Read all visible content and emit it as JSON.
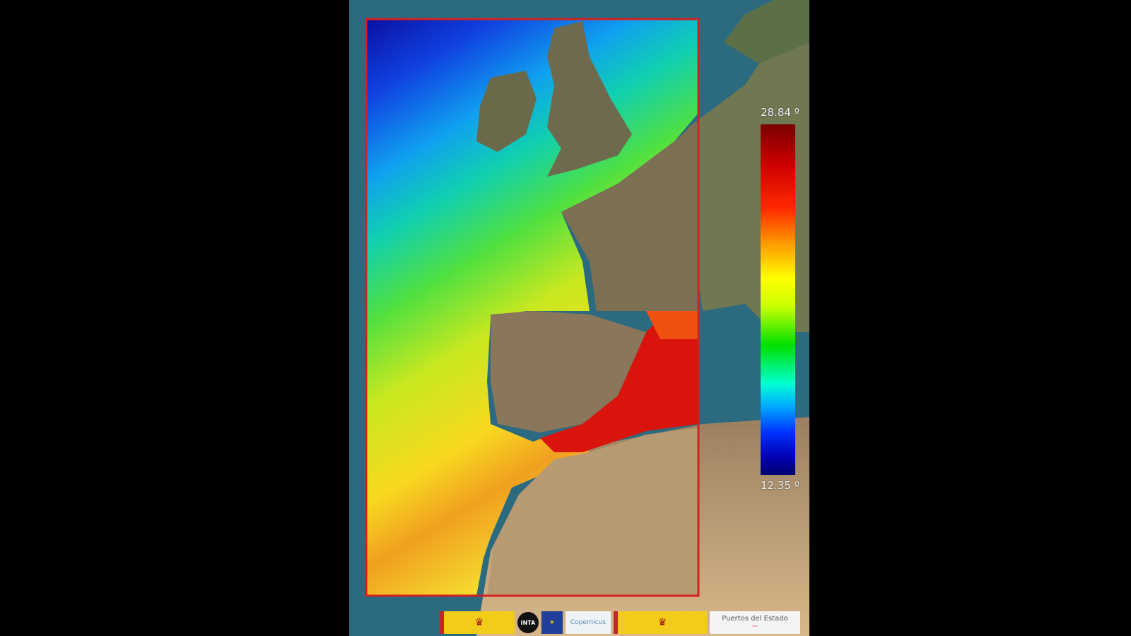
{
  "legend": {
    "max_label": "28.84 º",
    "min_label": "12.35 º",
    "max_value": 28.84,
    "min_value": 12.35,
    "colormap": [
      "#000070",
      "#0000b0",
      "#0030ff",
      "#00b0ff",
      "#00ffd0",
      "#00e000",
      "#c8ff00",
      "#ffff00",
      "#ff9a00",
      "#ff2a00",
      "#d00000",
      "#7a0000"
    ]
  },
  "colors": {
    "frame": "#d42020",
    "ocean": "#2f6f86",
    "land": "#8a7a5a",
    "desert": "#d9b98a"
  },
  "logos": {
    "inta": "INTA",
    "copernicus": "Copernicus",
    "puertos": "Puertos del Estado"
  }
}
